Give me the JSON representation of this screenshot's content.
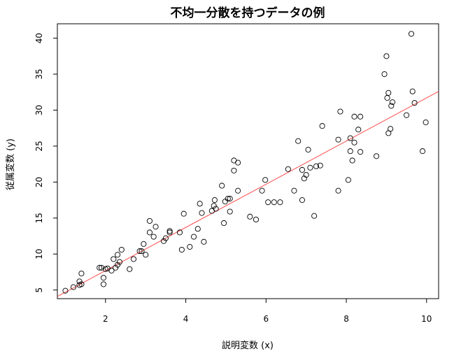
{
  "chart_data": {
    "type": "scatter",
    "title": "不均一分散を持つデータの例",
    "xlabel": "説明変数 (x)",
    "ylabel": "従属変数 (y)",
    "xlim": [
      0.8,
      10.3
    ],
    "ylim": [
      3.8,
      42.0
    ],
    "x_ticks": [
      "2",
      "4",
      "6",
      "8",
      "10"
    ],
    "y_ticks": [
      "5",
      "10",
      "15",
      "20",
      "25",
      "30",
      "35",
      "40"
    ],
    "grid": false,
    "legend": "none",
    "point_color": "#000000",
    "line_color": "#ff4d4d",
    "regression_line": {
      "intercept": 1.7,
      "slope": 3.0
    },
    "points": [
      [
        1.0,
        4.9
      ],
      [
        1.2,
        5.4
      ],
      [
        1.35,
        5.7
      ],
      [
        1.4,
        5.8
      ],
      [
        1.35,
        6.2
      ],
      [
        1.4,
        7.3
      ],
      [
        1.85,
        8.1
      ],
      [
        1.9,
        8.1
      ],
      [
        1.95,
        5.8
      ],
      [
        1.95,
        6.7
      ],
      [
        2.0,
        7.9
      ],
      [
        2.05,
        8.0
      ],
      [
        2.15,
        7.7
      ],
      [
        2.2,
        9.3
      ],
      [
        2.25,
        8.1
      ],
      [
        2.3,
        8.5
      ],
      [
        2.3,
        9.9
      ],
      [
        2.35,
        8.9
      ],
      [
        2.4,
        10.6
      ],
      [
        2.6,
        7.9
      ],
      [
        2.7,
        9.3
      ],
      [
        2.85,
        10.4
      ],
      [
        2.9,
        10.4
      ],
      [
        2.95,
        11.4
      ],
      [
        3.0,
        9.9
      ],
      [
        3.1,
        13.0
      ],
      [
        3.1,
        14.6
      ],
      [
        3.2,
        12.4
      ],
      [
        3.25,
        13.8
      ],
      [
        3.45,
        11.8
      ],
      [
        3.5,
        12.2
      ],
      [
        3.6,
        13.2
      ],
      [
        3.6,
        13.0
      ],
      [
        3.85,
        13.0
      ],
      [
        3.9,
        10.6
      ],
      [
        3.95,
        15.6
      ],
      [
        4.1,
        11.0
      ],
      [
        4.2,
        12.4
      ],
      [
        4.3,
        13.5
      ],
      [
        4.35,
        17.0
      ],
      [
        4.4,
        15.7
      ],
      [
        4.45,
        11.7
      ],
      [
        4.65,
        16.0
      ],
      [
        4.7,
        16.7
      ],
      [
        4.72,
        17.5
      ],
      [
        4.75,
        16.3
      ],
      [
        4.9,
        19.5
      ],
      [
        4.95,
        14.3
      ],
      [
        4.98,
        17.3
      ],
      [
        5.05,
        17.7
      ],
      [
        5.1,
        15.9
      ],
      [
        5.1,
        17.7
      ],
      [
        5.2,
        21.6
      ],
      [
        5.2,
        23.0
      ],
      [
        5.3,
        22.7
      ],
      [
        5.3,
        18.8
      ],
      [
        5.6,
        15.2
      ],
      [
        5.75,
        14.8
      ],
      [
        5.9,
        18.8
      ],
      [
        5.98,
        20.3
      ],
      [
        6.05,
        17.2
      ],
      [
        6.2,
        17.2
      ],
      [
        6.35,
        17.2
      ],
      [
        6.55,
        21.8
      ],
      [
        6.7,
        18.8
      ],
      [
        6.8,
        25.7
      ],
      [
        6.9,
        17.5
      ],
      [
        6.9,
        21.7
      ],
      [
        6.95,
        20.5
      ],
      [
        7.0,
        21.0
      ],
      [
        7.05,
        24.5
      ],
      [
        7.1,
        22.0
      ],
      [
        7.2,
        15.3
      ],
      [
        7.25,
        22.2
      ],
      [
        7.35,
        22.3
      ],
      [
        7.4,
        27.8
      ],
      [
        7.8,
        18.8
      ],
      [
        7.8,
        25.9
      ],
      [
        7.85,
        29.8
      ],
      [
        8.05,
        20.3
      ],
      [
        8.1,
        24.3
      ],
      [
        8.1,
        26.1
      ],
      [
        8.15,
        23.0
      ],
      [
        8.2,
        25.5
      ],
      [
        8.2,
        29.1
      ],
      [
        8.3,
        27.3
      ],
      [
        8.35,
        24.2
      ],
      [
        8.35,
        29.1
      ],
      [
        8.75,
        23.6
      ],
      [
        8.95,
        35.0
      ],
      [
        9.0,
        37.5
      ],
      [
        9.02,
        31.7
      ],
      [
        9.05,
        26.8
      ],
      [
        9.05,
        32.4
      ],
      [
        9.1,
        27.4
      ],
      [
        9.12,
        30.6
      ],
      [
        9.15,
        31.1
      ],
      [
        9.5,
        29.3
      ],
      [
        9.62,
        40.6
      ],
      [
        9.65,
        32.6
      ],
      [
        9.7,
        31.0
      ],
      [
        9.9,
        24.3
      ],
      [
        9.98,
        28.3
      ]
    ]
  }
}
